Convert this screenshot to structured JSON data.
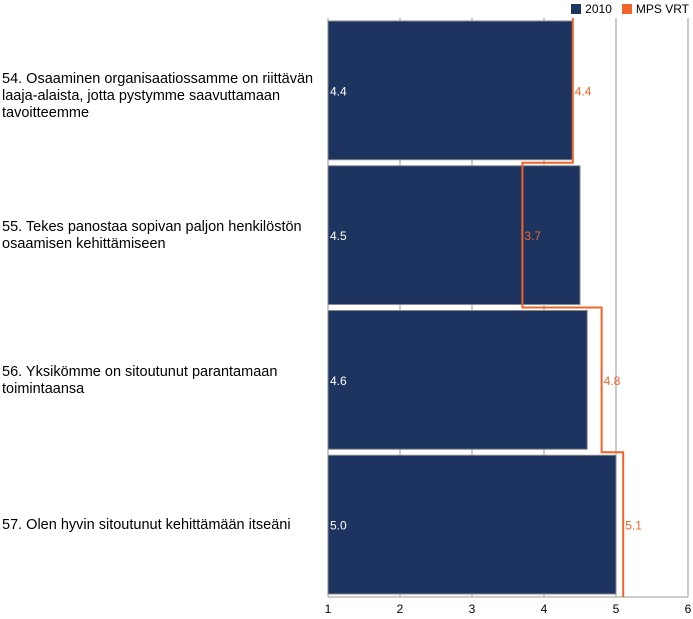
{
  "chart_data": {
    "type": "bar",
    "orientation": "horizontal",
    "categories": [
      "54. Osaaminen organisaatiossamme on riittävän laaja-alaista, jotta pystymme saavuttamaan tavoitteemme",
      "55. Tekes panostaa sopivan paljon henkilöstön osaamisen kehittämiseen",
      "56. Yksikömme on sitoutunut parantamaan toimintaansa",
      "57. Olen hyvin sitoutunut kehittämään itseäni"
    ],
    "series": [
      {
        "name": "2010",
        "kind": "bar",
        "color": "#1d3461",
        "values": [
          4.4,
          4.5,
          4.6,
          5.0
        ],
        "labels": [
          "4.4",
          "4.5",
          "4.6",
          "5.0"
        ]
      },
      {
        "name": "MPS VRT",
        "kind": "step-line",
        "color": "#f0642a",
        "values": [
          4.4,
          3.7,
          4.8,
          5.1
        ],
        "labels": [
          "4.4",
          "3.7",
          "4.8",
          "5.1"
        ]
      }
    ],
    "x_ticks": [
      "1",
      "2",
      "3",
      "4",
      "5",
      "6"
    ],
    "xlim": [
      1,
      6
    ],
    "grid": true,
    "legend_position": "top-right"
  }
}
